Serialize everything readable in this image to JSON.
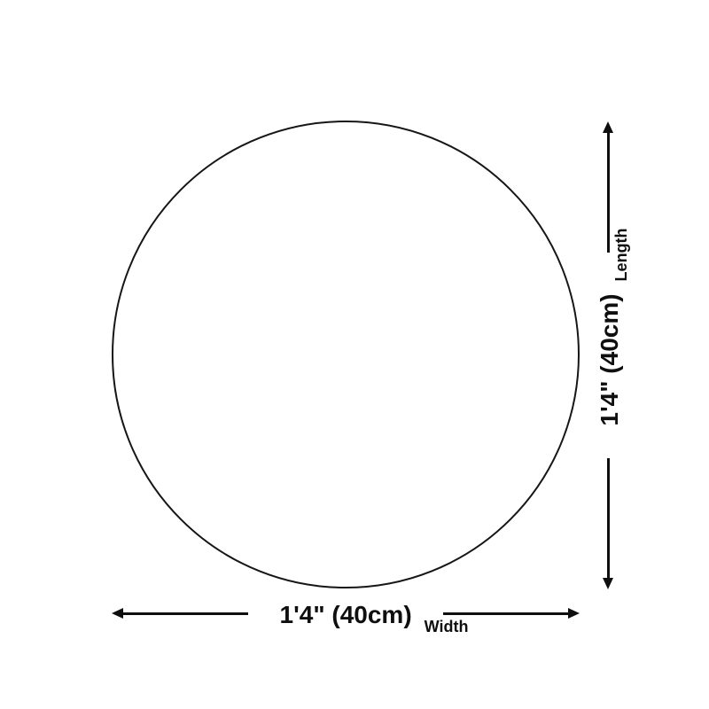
{
  "page": {
    "background_color": "#ffffff",
    "line_color": "#0f0f0f"
  },
  "diagram": {
    "shape": "circle",
    "circle_stroke_color": "#161616",
    "width": {
      "value": "1'4\" (40cm)",
      "axis_label": "Width"
    },
    "length": {
      "value": "1'4\" (40cm)",
      "axis_label": "Length"
    }
  }
}
